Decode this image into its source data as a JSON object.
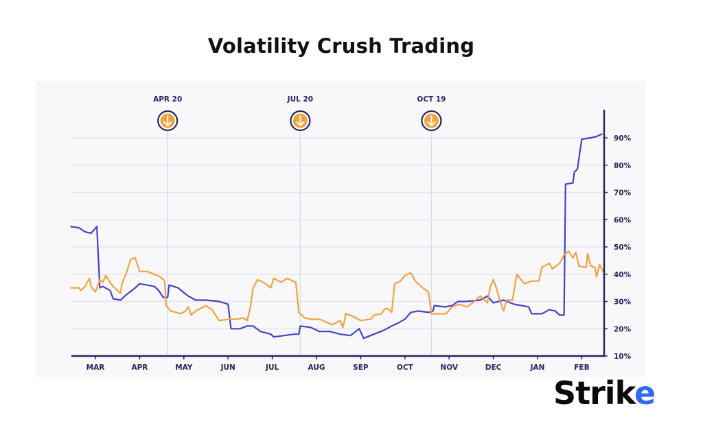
{
  "title": "Volatility Crush Trading",
  "logo": {
    "text": "Strike",
    "colors": {
      "text": "#0a0a0a",
      "accent": "#2f6bec"
    }
  },
  "chart_data": {
    "type": "line",
    "title": "Volatility Crush Trading",
    "xlabel": "",
    "ylabel": "",
    "x_tick_labels": [
      "MAR",
      "APR",
      "MAY",
      "JUN",
      "JUL",
      "AUG",
      "SEP",
      "OCT",
      "NOV",
      "DEC",
      "JAN",
      "FEB"
    ],
    "y_tick_labels": [
      "10%",
      "20%",
      "30%",
      "40%",
      "50%",
      "60%",
      "70%",
      "80%",
      "90%"
    ],
    "ylim": [
      10,
      100
    ],
    "y_axis_side": "right",
    "grid": true,
    "x_range": [
      "Feb 14",
      "Feb 16"
    ],
    "annotations": [
      {
        "label": "APR 20",
        "date": "Apr 20",
        "icon": "arrow-down-circle-icon"
      },
      {
        "label": "JUL 20",
        "date": "Jul 20",
        "icon": "arrow-down-circle-icon"
      },
      {
        "label": "OCT 19",
        "date": "Oct 19",
        "icon": "arrow-down-circle-icon"
      }
    ],
    "colors": {
      "series_blue": "#4343c4",
      "series_orange": "#f2a23f",
      "axis": "#25255e",
      "grid": "#e4e4f0",
      "panel": "#f8f8fa",
      "marker_fill": "#f2a23f"
    },
    "series": [
      {
        "color": "#4343c4",
        "points": [
          [
            "Feb 14",
            57.5
          ],
          [
            "Feb 20",
            57
          ],
          [
            "Feb 24",
            55.5
          ],
          [
            "Feb 28",
            55
          ],
          [
            "Mar 2",
            57.5
          ],
          [
            "Mar 4",
            35
          ],
          [
            "Mar 6",
            35.5
          ],
          [
            "Mar 11",
            34
          ],
          [
            "Mar 13",
            31
          ],
          [
            "Mar 18",
            30.5
          ],
          [
            "Mar 22",
            32.5
          ],
          [
            "Mar 27",
            34.5
          ],
          [
            "Apr 1",
            36.5
          ],
          [
            "Apr 6",
            36
          ],
          [
            "Apr 11",
            35.5
          ],
          [
            "Apr 14",
            34
          ],
          [
            "Apr 17",
            31.5
          ],
          [
            "Apr 20",
            31.5
          ],
          [
            "Apr 21",
            36
          ],
          [
            "Apr 27",
            35
          ],
          [
            "May 4",
            32
          ],
          [
            "May 9",
            30.5
          ],
          [
            "May 16",
            30.5
          ],
          [
            "May 25",
            30
          ],
          [
            "May 31",
            29
          ],
          [
            "Jun 3",
            20
          ],
          [
            "Jun 9",
            20
          ],
          [
            "Jun 14",
            21
          ],
          [
            "Jun 18",
            21
          ],
          [
            "Jun 23",
            19
          ],
          [
            "Jun 30",
            18
          ],
          [
            "Jul 2",
            17
          ],
          [
            "Jul 9",
            17.5
          ],
          [
            "Jul 16",
            18
          ],
          [
            "Jul 19",
            18
          ],
          [
            "Jul 20",
            21
          ],
          [
            "Jul 27",
            20.5
          ],
          [
            "Aug 3",
            19
          ],
          [
            "Aug 10",
            19
          ],
          [
            "Aug 17",
            18
          ],
          [
            "Aug 24",
            17.5
          ],
          [
            "Aug 30",
            20
          ],
          [
            "Sep 3",
            16.5
          ],
          [
            "Sep 10",
            18
          ],
          [
            "Sep 17",
            19.5
          ],
          [
            "Sep 22",
            21
          ],
          [
            "Sep 26",
            22
          ],
          [
            "Oct 1",
            23.5
          ],
          [
            "Oct 5",
            26
          ],
          [
            "Oct 10",
            26.5
          ],
          [
            "Oct 17",
            26
          ],
          [
            "Oct 20",
            26.5
          ],
          [
            "Oct 21",
            28.5
          ],
          [
            "Oct 28",
            28
          ],
          [
            "Nov 3",
            28.5
          ],
          [
            "Nov 7",
            30
          ],
          [
            "Nov 13",
            30
          ],
          [
            "Nov 22",
            30.5
          ],
          [
            "Nov 27",
            32
          ],
          [
            "Dec 1",
            29.5
          ],
          [
            "Dec 8",
            30.5
          ],
          [
            "Dec 15",
            29
          ],
          [
            "Dec 25",
            28
          ],
          [
            "Dec 27",
            25.5
          ],
          [
            "Jan 4",
            25.5
          ],
          [
            "Jan 9",
            27
          ],
          [
            "Jan 13",
            26.5
          ],
          [
            "Jan 16",
            25
          ],
          [
            "Jan 19",
            25
          ],
          [
            "Jan 20",
            73
          ],
          [
            "Jan 25",
            73.5
          ],
          [
            "Jan 26",
            77.5
          ],
          [
            "Jan 28",
            78.5
          ],
          [
            "Feb 1",
            89.5
          ],
          [
            "Feb 7",
            90
          ],
          [
            "Feb 11",
            90.5
          ],
          [
            "Feb 15",
            91.5
          ]
        ]
      },
      {
        "color": "#f2a23f",
        "points": [
          [
            "Feb 14",
            35
          ],
          [
            "Feb 20",
            35
          ],
          [
            "Feb 21",
            34
          ],
          [
            "Feb 24",
            35.5
          ],
          [
            "Feb 27",
            38.5
          ],
          [
            "Feb 28",
            35.5
          ],
          [
            "Mar 1",
            33.5
          ],
          [
            "Mar 4",
            38
          ],
          [
            "Mar 6",
            37
          ],
          [
            "Mar 8",
            39.5
          ],
          [
            "Mar 11",
            37
          ],
          [
            "Mar 13",
            35.5
          ],
          [
            "Mar 18",
            33
          ],
          [
            "Mar 19",
            36.5
          ],
          [
            "Mar 22",
            40.5
          ],
          [
            "Mar 25",
            45.5
          ],
          [
            "Mar 28",
            46
          ],
          [
            "Apr 1",
            41
          ],
          [
            "Apr 6",
            41
          ],
          [
            "Apr 11",
            40
          ],
          [
            "Apr 15",
            39
          ],
          [
            "Apr 18",
            37.5
          ],
          [
            "Apr 19",
            28.5
          ],
          [
            "Apr 22",
            26.5
          ],
          [
            "Apr 26",
            26
          ],
          [
            "Apr 29",
            25.5
          ],
          [
            "May 2",
            26.5
          ],
          [
            "May 4",
            28
          ],
          [
            "May 6",
            25
          ],
          [
            "May 9",
            26.5
          ],
          [
            "May 16",
            28.5
          ],
          [
            "May 20",
            27
          ],
          [
            "May 25",
            23
          ],
          [
            "Jun 2",
            23.5
          ],
          [
            "Jun 7",
            23.5
          ],
          [
            "Jun 11",
            24
          ],
          [
            "Jun 14",
            23
          ],
          [
            "Jun 16",
            27.5
          ],
          [
            "Jun 18",
            35
          ],
          [
            "Jun 21",
            38
          ],
          [
            "Jun 25",
            37
          ],
          [
            "Jun 30",
            35
          ],
          [
            "Jul 2",
            38.5
          ],
          [
            "Jul 7",
            37
          ],
          [
            "Jul 11",
            38.5
          ],
          [
            "Jul 17",
            37
          ],
          [
            "Jul 19",
            26
          ],
          [
            "Jul 23",
            24
          ],
          [
            "Jul 27",
            23.5
          ],
          [
            "Aug 3",
            23.5
          ],
          [
            "Aug 7",
            22.5
          ],
          [
            "Aug 12",
            21.5
          ],
          [
            "Aug 17",
            23
          ],
          [
            "Aug 19",
            20.5
          ],
          [
            "Aug 21",
            25.5
          ],
          [
            "Aug 26",
            24.5
          ],
          [
            "Sep 1",
            23
          ],
          [
            "Sep 8",
            23.5
          ],
          [
            "Sep 10",
            25
          ],
          [
            "Sep 15",
            25.5
          ],
          [
            "Sep 17",
            27
          ],
          [
            "Sep 19",
            27.5
          ],
          [
            "Sep 22",
            26
          ],
          [
            "Sep 24",
            36.5
          ],
          [
            "Sep 28",
            37.5
          ],
          [
            "Oct 1",
            39.5
          ],
          [
            "Oct 5",
            40.5
          ],
          [
            "Oct 8",
            37.5
          ],
          [
            "Oct 13",
            35
          ],
          [
            "Oct 17",
            33.5
          ],
          [
            "Oct 19",
            25.5
          ],
          [
            "Oct 24",
            25.5
          ],
          [
            "Oct 29",
            25.5
          ],
          [
            "Nov 3",
            28
          ],
          [
            "Nov 8",
            29
          ],
          [
            "Nov 13",
            28
          ],
          [
            "Nov 17",
            29.5
          ],
          [
            "Nov 22",
            32
          ],
          [
            "Nov 27",
            29.5
          ],
          [
            "Nov 29",
            35.5
          ],
          [
            "Dec 1",
            38
          ],
          [
            "Dec 3",
            35
          ],
          [
            "Dec 6",
            29.5
          ],
          [
            "Dec 8",
            26.5
          ],
          [
            "Dec 10",
            30.5
          ],
          [
            "Dec 14",
            30.5
          ],
          [
            "Dec 17",
            40
          ],
          [
            "Dec 22",
            36.5
          ],
          [
            "Dec 27",
            37.5
          ],
          [
            "Jan 2",
            37.5
          ],
          [
            "Jan 4",
            42.5
          ],
          [
            "Jan 9",
            44
          ],
          [
            "Jan 11",
            42
          ],
          [
            "Jan 16",
            44
          ],
          [
            "Jan 19",
            47
          ],
          [
            "Jan 22",
            48.5
          ],
          [
            "Jan 25",
            46
          ],
          [
            "Jan 27",
            48
          ],
          [
            "Jan 29",
            43
          ],
          [
            "Feb 4",
            42.5
          ],
          [
            "Feb 5",
            47.5
          ],
          [
            "Feb 7",
            43
          ],
          [
            "Feb 10",
            42.5
          ],
          [
            "Feb 11",
            39
          ],
          [
            "Feb 13",
            43.5
          ],
          [
            "Feb 16",
            40.5
          ]
        ]
      }
    ]
  }
}
